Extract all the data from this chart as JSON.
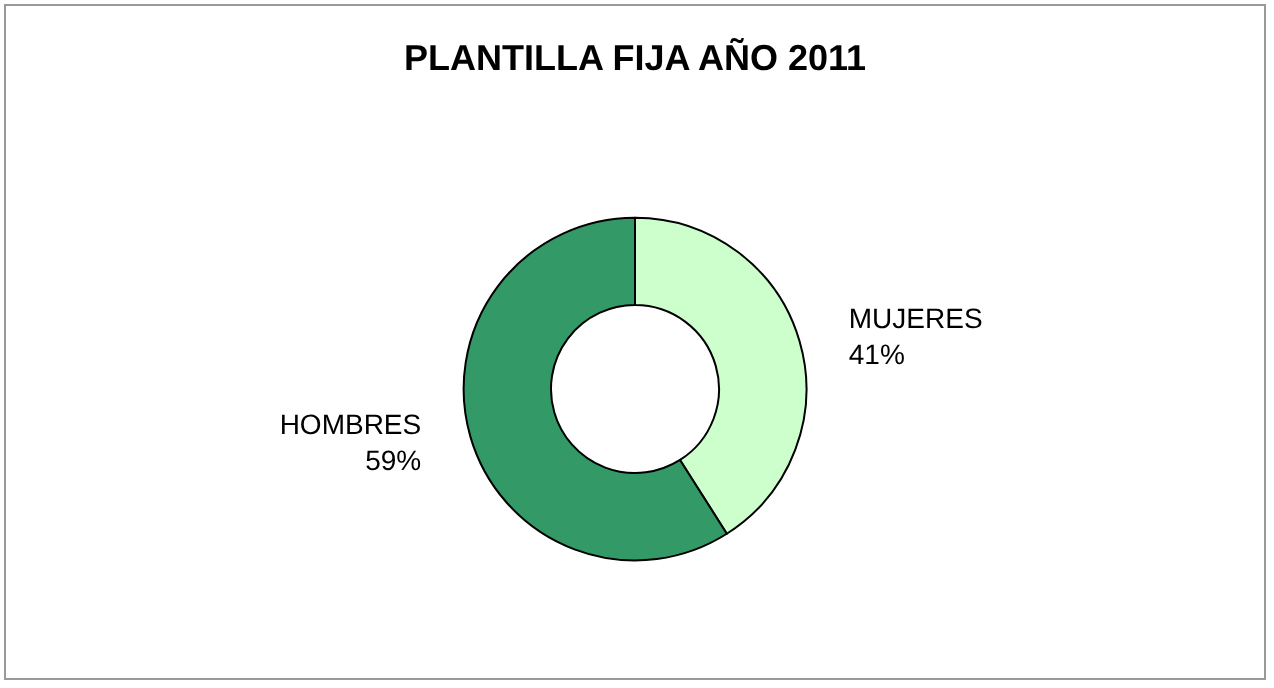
{
  "chart_data": {
    "type": "donut",
    "title": "PLANTILLA FIJA AÑO 2011",
    "categories": [
      "MUJERES",
      "HOMBRES"
    ],
    "values": [
      41,
      59
    ],
    "colors": [
      "#ccffcc",
      "#339966"
    ],
    "value_labels": [
      "41%",
      "59%"
    ],
    "legend": false
  }
}
